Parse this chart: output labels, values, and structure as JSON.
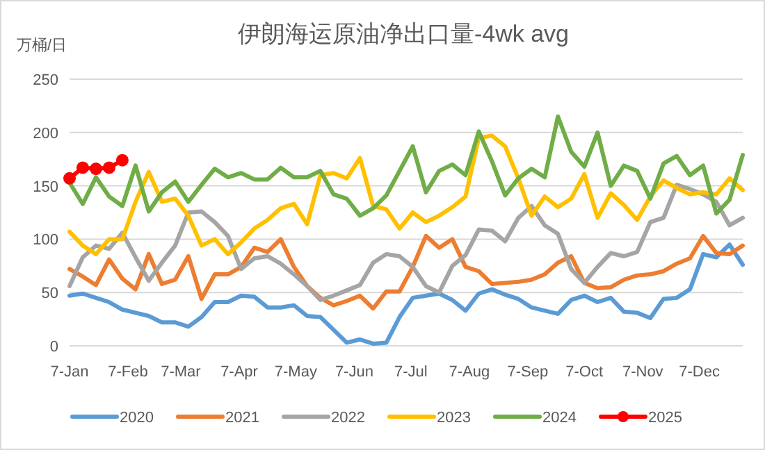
{
  "chart_data": {
    "type": "line",
    "title": "伊朗海运原油净出口量-4wk avg",
    "ylabel": "万桶/日",
    "x": [
      "--01-07",
      "--01-14",
      "--01-21",
      "--01-28",
      "--02-04",
      "--02-11",
      "--02-18",
      "--02-25",
      "--03-04",
      "--03-11",
      "--03-18",
      "--03-25",
      "--04-01",
      "--04-08",
      "--04-15",
      "--04-22",
      "--04-29",
      "--05-06",
      "--05-13",
      "--05-20",
      "--05-27",
      "--06-03",
      "--06-10",
      "--06-17",
      "--06-24",
      "--07-01",
      "--07-08",
      "--07-15",
      "--07-22",
      "--07-29",
      "--08-05",
      "--08-12",
      "--08-19",
      "--08-26",
      "--09-02",
      "--09-09",
      "--09-16",
      "--09-23",
      "--09-30",
      "--10-07",
      "--10-14",
      "--10-21",
      "--10-28",
      "--11-04",
      "--11-11",
      "--11-18",
      "--11-25",
      "--12-02",
      "--12-09",
      "--12-16",
      "--12-23",
      "--12-30"
    ],
    "series": [
      {
        "name": "2020",
        "color": "#5b9bd5",
        "marker": "none",
        "values": [
          47,
          49,
          45,
          41,
          34,
          31,
          28,
          22,
          22,
          18,
          27,
          41,
          41,
          47,
          46,
          36,
          36,
          38,
          28,
          27,
          15,
          3,
          6,
          2,
          3,
          27,
          45,
          47,
          49,
          43,
          33,
          49,
          53,
          48,
          44,
          36,
          33,
          30,
          43,
          47,
          41,
          45,
          32,
          31,
          26,
          44,
          45,
          53,
          86,
          83,
          95,
          76
        ]
      },
      {
        "name": "2021",
        "color": "#ed7d31",
        "marker": "none",
        "values": [
          72,
          65,
          57,
          81,
          63,
          53,
          86,
          58,
          62,
          84,
          44,
          67,
          67,
          74,
          92,
          88,
          100,
          74,
          56,
          45,
          38,
          42,
          47,
          35,
          51,
          51,
          74,
          103,
          92,
          100,
          74,
          70,
          58,
          59,
          60,
          62,
          67,
          78,
          84,
          59,
          54,
          55,
          62,
          66,
          67,
          70,
          77,
          82,
          103,
          87,
          86,
          94
        ]
      },
      {
        "name": "2022",
        "color": "#a5a5a5",
        "marker": "none",
        "values": [
          56,
          83,
          94,
          91,
          106,
          83,
          61,
          78,
          94,
          125,
          126,
          116,
          103,
          72,
          82,
          84,
          77,
          67,
          56,
          43,
          47,
          52,
          57,
          78,
          86,
          84,
          74,
          56,
          50,
          75,
          85,
          109,
          108,
          98,
          120,
          131,
          113,
          105,
          72,
          59,
          74,
          87,
          84,
          88,
          116,
          120,
          151,
          147,
          142,
          135,
          113,
          120
        ]
      },
      {
        "name": "2023",
        "color": "#ffc000",
        "marker": "none",
        "values": [
          107,
          94,
          86,
          100,
          100,
          135,
          163,
          135,
          138,
          122,
          94,
          100,
          86,
          97,
          110,
          118,
          129,
          133,
          114,
          160,
          162,
          157,
          176,
          131,
          128,
          110,
          125,
          116,
          122,
          130,
          140,
          195,
          197,
          187,
          157,
          122,
          140,
          130,
          138,
          161,
          120,
          143,
          132,
          118,
          140,
          155,
          148,
          142,
          144,
          142,
          157,
          146
        ]
      },
      {
        "name": "2024",
        "color": "#70ad47",
        "marker": "none",
        "values": [
          153,
          133,
          158,
          140,
          131,
          169,
          126,
          144,
          154,
          135,
          151,
          166,
          158,
          162,
          156,
          156,
          167,
          158,
          158,
          164,
          142,
          138,
          122,
          129,
          141,
          164,
          187,
          144,
          164,
          170,
          160,
          201,
          173,
          141,
          157,
          166,
          158,
          215,
          182,
          168,
          200,
          150,
          169,
          164,
          138,
          171,
          178,
          160,
          169,
          124,
          137,
          179
        ]
      },
      {
        "name": "2025",
        "color": "#ff0000",
        "marker": "circle",
        "x": [
          "--01-07",
          "--01-14",
          "--01-21",
          "--01-28",
          "--02-04"
        ],
        "values": [
          157,
          167,
          166,
          167,
          174
        ]
      }
    ],
    "ylim": [
      0,
      250
    ],
    "yticks": [
      0,
      50,
      100,
      150,
      200,
      250
    ],
    "xlim": [
      "--01-07",
      "--12-30"
    ],
    "xticks": [
      {
        "value": "--01-07",
        "label": "7-Jan"
      },
      {
        "value": "--02-07",
        "label": "7-Feb"
      },
      {
        "value": "--03-07",
        "label": "7-Mar"
      },
      {
        "value": "--04-07",
        "label": "7-Apr"
      },
      {
        "value": "--05-07",
        "label": "7-May"
      },
      {
        "value": "--06-07",
        "label": "7-Jun"
      },
      {
        "value": "--07-07",
        "label": "7-Jul"
      },
      {
        "value": "--08-07",
        "label": "7-Aug"
      },
      {
        "value": "--09-07",
        "label": "7-Sep"
      },
      {
        "value": "--10-07",
        "label": "7-Oct"
      },
      {
        "value": "--11-07",
        "label": "7-Nov"
      },
      {
        "value": "--12-07",
        "label": "7-Dec"
      }
    ],
    "grid": "y",
    "legend": "bottom"
  }
}
